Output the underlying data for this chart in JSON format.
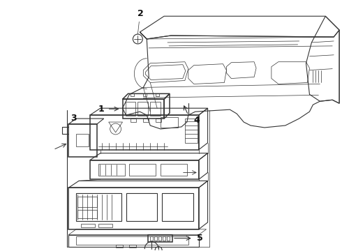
{
  "background_color": "#ffffff",
  "line_color": "#333333",
  "label_color": "#111111",
  "figsize": [
    4.9,
    3.6
  ],
  "dpi": 100,
  "label_fontsize": 9,
  "label_fontweight": "bold"
}
